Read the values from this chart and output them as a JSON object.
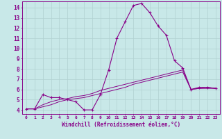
{
  "xlabel": "Windchill (Refroidissement éolien,°C)",
  "bg_color": "#c8e8e8",
  "grid_color": "#b0d0d0",
  "line_color": "#880088",
  "xlim": [
    -0.5,
    23.5
  ],
  "ylim": [
    3.6,
    14.6
  ],
  "xticks": [
    0,
    1,
    2,
    3,
    4,
    5,
    6,
    7,
    8,
    9,
    10,
    11,
    12,
    13,
    14,
    15,
    16,
    17,
    18,
    19,
    20,
    21,
    22,
    23
  ],
  "yticks": [
    4,
    5,
    6,
    7,
    8,
    9,
    10,
    11,
    12,
    13,
    14
  ],
  "series1_x": [
    0,
    1,
    2,
    3,
    4,
    5,
    6,
    7,
    8,
    9,
    10,
    11,
    12,
    13,
    14,
    15,
    16,
    17,
    18,
    19,
    20,
    21,
    22,
    23
  ],
  "series1_y": [
    4.1,
    4.1,
    5.5,
    5.2,
    5.2,
    5.0,
    4.8,
    4.0,
    4.0,
    5.5,
    7.9,
    11.0,
    12.6,
    14.2,
    14.4,
    13.5,
    12.2,
    11.3,
    8.8,
    8.1,
    6.0,
    6.2,
    6.2,
    6.1
  ],
  "series2_x": [
    0,
    1,
    2,
    3,
    4,
    5,
    6,
    7,
    8,
    9,
    10,
    11,
    12,
    13,
    14,
    15,
    16,
    17,
    18,
    19,
    20,
    21,
    22,
    23
  ],
  "series2_y": [
    4.1,
    4.1,
    4.5,
    4.8,
    5.0,
    5.1,
    5.3,
    5.4,
    5.6,
    5.9,
    6.1,
    6.3,
    6.5,
    6.7,
    6.9,
    7.1,
    7.3,
    7.5,
    7.7,
    7.9,
    6.0,
    6.1,
    6.2,
    6.1
  ],
  "series3_x": [
    0,
    1,
    2,
    3,
    4,
    5,
    6,
    7,
    8,
    9,
    10,
    11,
    12,
    13,
    14,
    15,
    16,
    17,
    18,
    19,
    20,
    21,
    22,
    23
  ],
  "series3_y": [
    4.1,
    4.1,
    4.3,
    4.5,
    4.8,
    5.0,
    5.1,
    5.2,
    5.4,
    5.6,
    5.8,
    6.0,
    6.2,
    6.5,
    6.7,
    6.9,
    7.1,
    7.3,
    7.5,
    7.7,
    6.0,
    6.1,
    6.1,
    6.1
  ],
  "xlabel_fontsize": 5.5,
  "ytick_fontsize": 5.5,
  "xtick_fontsize": 4.5
}
